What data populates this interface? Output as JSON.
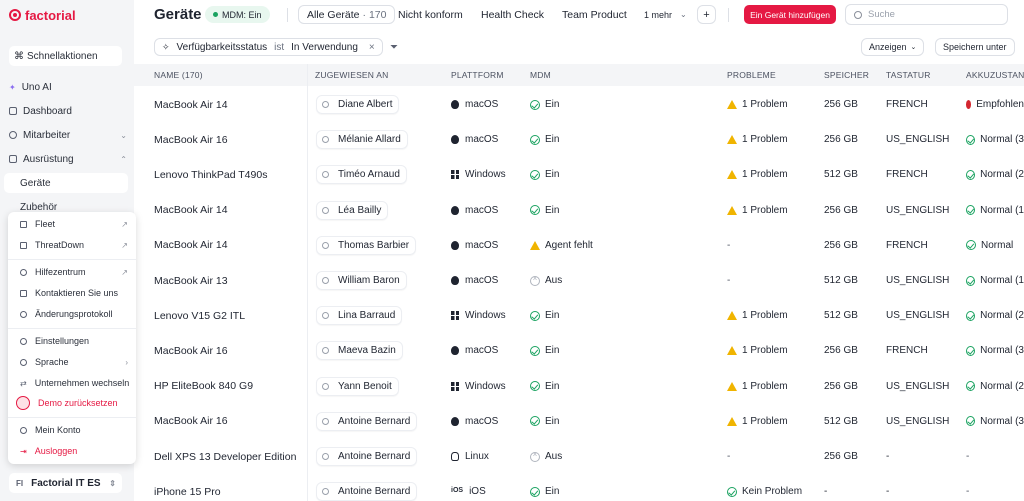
{
  "app": {
    "logo_text": "factorial"
  },
  "sidebar": {
    "quick_actions": "Schnellaktionen",
    "items": [
      {
        "label": "Uno AI"
      },
      {
        "label": "Dashboard"
      },
      {
        "label": "Mitarbeiter"
      },
      {
        "label": "Ausrüstung"
      },
      {
        "label": "Geräte"
      },
      {
        "label": "Zubehör"
      }
    ],
    "menu": [
      {
        "label": "Fleet"
      },
      {
        "label": "ThreatDown"
      },
      {
        "label": "Hilfezentrum"
      },
      {
        "label": "Kontaktieren Sie uns"
      },
      {
        "label": "Änderungsprotokoll"
      },
      {
        "label": "Einstellungen"
      },
      {
        "label": "Sprache"
      },
      {
        "label": "Unternehmen wechseln"
      },
      {
        "label": "Demo zurücksetzen"
      },
      {
        "label": "Mein Konto"
      },
      {
        "label": "Ausloggen"
      }
    ],
    "company": {
      "initials": "FI",
      "name": "Factorial IT ES"
    }
  },
  "header": {
    "title": "Geräte",
    "mdm_pill": "MDM: Ein",
    "tabs": [
      {
        "label": "Alle Geräte",
        "count": "· 170"
      },
      {
        "label": "Nicht konform",
        "count": ""
      },
      {
        "label": "Health Check",
        "count": ""
      },
      {
        "label": "Team Product",
        "count": ""
      },
      {
        "label": "1 mehr",
        "count": ""
      }
    ],
    "plus": "+",
    "add_button": "Ein Gerät hinzufügen",
    "search_placeholder": "Suche"
  },
  "filter": {
    "field": "Verfügbarkeitsstatus",
    "operator": "ist",
    "value": "In Verwendung",
    "show_button": "Anzeigen",
    "save_button": "Speichern unter"
  },
  "table": {
    "headers": [
      "NAME (170)",
      "ZUGEWIESEN AN",
      "PLATTFORM",
      "MDM",
      "PROBLEME",
      "SPEICHER",
      "TASTATUR",
      "AKKUZUSTAND"
    ],
    "rows": [
      {
        "name": "MacBook Air 14",
        "assignee": "Diane Albert",
        "platform": "macOS",
        "mdm": "Ein",
        "problems": "1 Problem",
        "storage": "256 GB",
        "keyboard": "FRENCH",
        "battery": "Empfohlen"
      },
      {
        "name": "MacBook Air 16",
        "assignee": "Mélanie Allard",
        "platform": "macOS",
        "mdm": "Ein",
        "problems": "1 Problem",
        "storage": "256 GB",
        "keyboard": "US_ENGLISH",
        "battery": "Normal (3"
      },
      {
        "name": "Lenovo ThinkPad T490s",
        "assignee": "Timéo Arnaud",
        "platform": "Windows",
        "mdm": "Ein",
        "problems": "1 Problem",
        "storage": "512 GB",
        "keyboard": "FRENCH",
        "battery": "Normal (2"
      },
      {
        "name": "MacBook Air 14",
        "assignee": "Léa Bailly",
        "platform": "macOS",
        "mdm": "Ein",
        "problems": "1 Problem",
        "storage": "256 GB",
        "keyboard": "US_ENGLISH",
        "battery": "Normal (1"
      },
      {
        "name": "MacBook Air 14",
        "assignee": "Thomas Barbier",
        "platform": "macOS",
        "mdm": "Agent fehlt",
        "problems": "-",
        "storage": "256 GB",
        "keyboard": "FRENCH",
        "battery": "Normal"
      },
      {
        "name": "MacBook Air 13",
        "assignee": "William Baron",
        "platform": "macOS",
        "mdm": "Aus",
        "problems": "-",
        "storage": "512 GB",
        "keyboard": "US_ENGLISH",
        "battery": "Normal (1"
      },
      {
        "name": "Lenovo V15 G2 ITL",
        "assignee": "Lina Barraud",
        "platform": "Windows",
        "mdm": "Ein",
        "problems": "1 Problem",
        "storage": "512 GB",
        "keyboard": "US_ENGLISH",
        "battery": "Normal (2"
      },
      {
        "name": "MacBook Air 16",
        "assignee": "Maeva Bazin",
        "platform": "macOS",
        "mdm": "Ein",
        "problems": "1 Problem",
        "storage": "256 GB",
        "keyboard": "FRENCH",
        "battery": "Normal (3"
      },
      {
        "name": "HP EliteBook 840 G9",
        "assignee": "Yann Benoit",
        "platform": "Windows",
        "mdm": "Ein",
        "problems": "1 Problem",
        "storage": "256 GB",
        "keyboard": "US_ENGLISH",
        "battery": "Normal (2"
      },
      {
        "name": "MacBook Air 16",
        "assignee": "Antoine Bernard",
        "platform": "macOS",
        "mdm": "Ein",
        "problems": "1 Problem",
        "storage": "512 GB",
        "keyboard": "US_ENGLISH",
        "battery": "Normal (3"
      },
      {
        "name": "Dell XPS 13 Developer Edition",
        "assignee": "Antoine Bernard",
        "platform": "Linux",
        "mdm": "Aus",
        "problems": "-",
        "storage": "256 GB",
        "keyboard": "-",
        "battery": "-"
      },
      {
        "name": "iPhone 15 Pro",
        "assignee": "Antoine Bernard",
        "platform": "iOS",
        "mdm": "Ein",
        "problems": "Kein Problem",
        "storage": "-",
        "keyboard": "-",
        "battery": "-"
      }
    ]
  }
}
